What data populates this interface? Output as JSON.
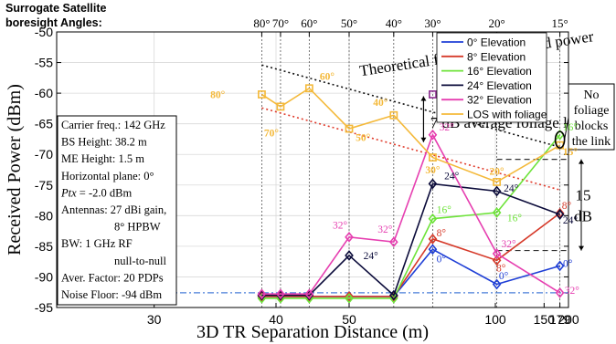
{
  "chart_data": {
    "type": "line",
    "title": "",
    "xlabel": "3D TR Separation Distance (m)",
    "ylabel": "Received Power (dBm)",
    "x_scale": "reciprocal",
    "xlim": [
      25,
      200
    ],
    "ylim": [
      -95,
      -50
    ],
    "x_ticks": [
      30,
      40,
      50,
      100,
      150,
      179,
      200
    ],
    "y_ticks": [
      -95,
      -90,
      -85,
      -80,
      -75,
      -70,
      -65,
      -60,
      -55,
      -50
    ],
    "grid": true,
    "legend_position": "top-right",
    "top_axis": {
      "title_line1": "Surrogate Satellite",
      "title_line2": "boresight Angles:",
      "ticks": [
        {
          "x": 38.5,
          "label": "80°"
        },
        {
          "x": 40.5,
          "label": "70°"
        },
        {
          "x": 44,
          "label": "60°"
        },
        {
          "x": 50,
          "label": "50°"
        },
        {
          "x": 59,
          "label": "40°"
        },
        {
          "x": 70,
          "label": "30°"
        },
        {
          "x": 101,
          "label": "20°"
        },
        {
          "x": 179,
          "label": "15°"
        }
      ]
    },
    "series": [
      {
        "name": "0° Elevation",
        "color": "#1f3fd6",
        "marker": "diamond",
        "x": [
          38.5,
          40.5,
          44,
          50,
          59,
          70,
          101,
          179
        ],
        "y": [
          -93.2,
          -93.2,
          -93.2,
          -93.2,
          -93.2,
          -85.5,
          -91.2,
          -88.2
        ]
      },
      {
        "name": "8° Elevation",
        "color": "#d63a2a",
        "marker": "diamond",
        "x": [
          38.5,
          40.5,
          44,
          50,
          59,
          70,
          101,
          179
        ],
        "y": [
          -93.2,
          -93.2,
          -93.2,
          -93.2,
          -93.2,
          -83.8,
          -87.3,
          -79.6
        ]
      },
      {
        "name": "16° Elevation",
        "color": "#6ee33a",
        "marker": "diamond",
        "x": [
          38.5,
          40.5,
          44,
          50,
          59,
          70,
          101,
          179
        ],
        "y": [
          -93.5,
          -93.5,
          -93.5,
          -93.5,
          -93.5,
          -80.5,
          -79.5,
          -66.8
        ]
      },
      {
        "name": "24° Elevation",
        "color": "#0b0b3a",
        "marker": "diamond",
        "x": [
          38.5,
          40.5,
          44,
          50,
          59,
          70,
          101,
          179
        ],
        "y": [
          -93,
          -93,
          -93,
          -86.5,
          -93,
          -74.8,
          -76,
          -79.8
        ]
      },
      {
        "name": "32° Elevation",
        "color": "#e63fb0",
        "marker": "diamond",
        "x": [
          38.5,
          40.5,
          44,
          50,
          59,
          70,
          101,
          179
        ],
        "y": [
          -92.8,
          -92.8,
          -92.8,
          -83.5,
          -84.3,
          -66.8,
          -86.2,
          -92.6
        ]
      },
      {
        "name": "LOS with foliage",
        "color": "#f4b93a",
        "marker": "square",
        "x": [
          38.5,
          40.5,
          44,
          50,
          59,
          70,
          101,
          179
        ],
        "y": [
          -60.2,
          -62.2,
          -59.2,
          -65.8,
          -63.6,
          -70.5,
          -74.5,
          -68.5
        ]
      }
    ],
    "extra_markers": [
      {
        "x": 70,
        "y": -60.2,
        "color": "#8b2c8f",
        "marker": "square"
      },
      {
        "x": 101,
        "y": -63,
        "color": "#8b2c8f",
        "marker": "square"
      }
    ],
    "reference_lines": [
      {
        "label": "Theoretical free space received power",
        "style": "dotted",
        "color": "#111111",
        "x": [
          38.5,
          179
        ],
        "y": [
          -55.4,
          -68.8
        ]
      },
      {
        "label": "",
        "style": "dotted",
        "color": "#e03a2a",
        "x": [
          38.5,
          179
        ],
        "y": [
          -62.4,
          -75.8
        ]
      },
      {
        "label": "",
        "style": "dashdot",
        "color": "#4a7fd8",
        "x": [
          25,
          200
        ],
        "y": [
          -92.6,
          -92.6
        ]
      },
      {
        "label": "",
        "style": "dashed",
        "color": "#333333",
        "x": [
          101,
          200
        ],
        "y": [
          -70.8,
          -70.8
        ]
      },
      {
        "label": "",
        "style": "dashed",
        "color": "#333333",
        "x": [
          101,
          200
        ],
        "y": [
          -85.7,
          -85.7
        ]
      }
    ],
    "annotations": [
      {
        "text": "Theoretical free space received power",
        "x": 52,
        "y": -57.2,
        "rotate": -8.5
      },
      {
        "text": "7 dB average foliage loss",
        "x": 68,
        "y": -65.2
      },
      {
        "text": "15",
        "x": 215,
        "y": -77.5
      },
      {
        "text": "dB",
        "x": 215,
        "y": -80.5
      }
    ],
    "callout_box": {
      "lines": [
        "No",
        "foliage",
        "blocks",
        "the link"
      ]
    },
    "info_box": {
      "lines": [
        {
          "text": "Carrier freq.: 142 GHz"
        },
        {
          "text": "BS Height: 38.2 m"
        },
        {
          "text": "ME Height: 1.5 m"
        },
        {
          "text": "Horizontal plane: 0°"
        },
        {
          "var": "Ptx",
          "text": " = -2.0 dBm"
        },
        {
          "text": "Antennas: 27 dBi gain,"
        },
        {
          "text": "8° HPBW",
          "indent": true
        },
        {
          "text": "BW: 1 GHz RF"
        },
        {
          "text": "null-to-null",
          "indent": true
        },
        {
          "text": "Aver. Factor: 20 PDPs"
        },
        {
          "text": "Noise Floor: -94 dBm"
        }
      ]
    },
    "point_labels": [
      {
        "text": "80°",
        "color": "#f4b93a",
        "x": 34.5,
        "y": -60.2
      },
      {
        "text": "70°",
        "color": "#f4b93a",
        "x": 39.5,
        "y": -66.5
      },
      {
        "text": "60°",
        "color": "#f4b93a",
        "x": 46.5,
        "y": -57.2
      },
      {
        "text": "50°",
        "color": "#f4b93a",
        "x": 52.5,
        "y": -67.2
      },
      {
        "text": "40°",
        "color": "#f4b93a",
        "x": 56,
        "y": -61.5
      },
      {
        "text": "30°",
        "color": "#f4b93a",
        "x": 70,
        "y": -72.5
      },
      {
        "text": "20°",
        "color": "#f4b93a",
        "x": 101,
        "y": -72.7
      },
      {
        "text": "15°",
        "color": "#f4b93a",
        "x": 205,
        "y": -69.5
      },
      {
        "text": "32°",
        "color": "#e63fb0",
        "x": 48.5,
        "y": -81.5
      },
      {
        "text": "32°",
        "color": "#e63fb0",
        "x": 57,
        "y": -82.2
      },
      {
        "text": "32°",
        "color": "#e63fb0",
        "x": 75,
        "y": -65.5
      },
      {
        "text": "32°",
        "color": "#e63fb0",
        "x": 110,
        "y": -84.6
      },
      {
        "text": "32°",
        "color": "#e63fb0",
        "x": 210,
        "y": -92.2
      },
      {
        "text": "16°",
        "color": "#6ee33a",
        "x": 74,
        "y": -79
      },
      {
        "text": "16°",
        "color": "#6ee33a",
        "x": 115,
        "y": -80.3
      },
      {
        "text": "16°",
        "color": "#6ee33a",
        "x": 205,
        "y": -65.5
      },
      {
        "text": "24°",
        "color": "#0b0b3a",
        "x": 54,
        "y": -86.5
      },
      {
        "text": "24°",
        "color": "#0b0b3a",
        "x": 77,
        "y": -73.5
      },
      {
        "text": "24°",
        "color": "#0b0b3a",
        "x": 112,
        "y": -75.5
      },
      {
        "text": "24°",
        "color": "#0b0b3a",
        "x": 205,
        "y": -80.7
      },
      {
        "text": "8°",
        "color": "#d63a2a",
        "x": 73,
        "y": -82.8
      },
      {
        "text": "8°",
        "color": "#d63a2a",
        "x": 104,
        "y": -88.5
      },
      {
        "text": "8°",
        "color": "#d63a2a",
        "x": 195,
        "y": -78.3
      },
      {
        "text": "0°",
        "color": "#1f3fd6",
        "x": 73,
        "y": -87
      },
      {
        "text": "0°",
        "color": "#1f3fd6",
        "x": 106,
        "y": -89.8
      },
      {
        "text": "0°",
        "color": "#1f3fd6",
        "x": 198,
        "y": -87.8
      }
    ]
  }
}
